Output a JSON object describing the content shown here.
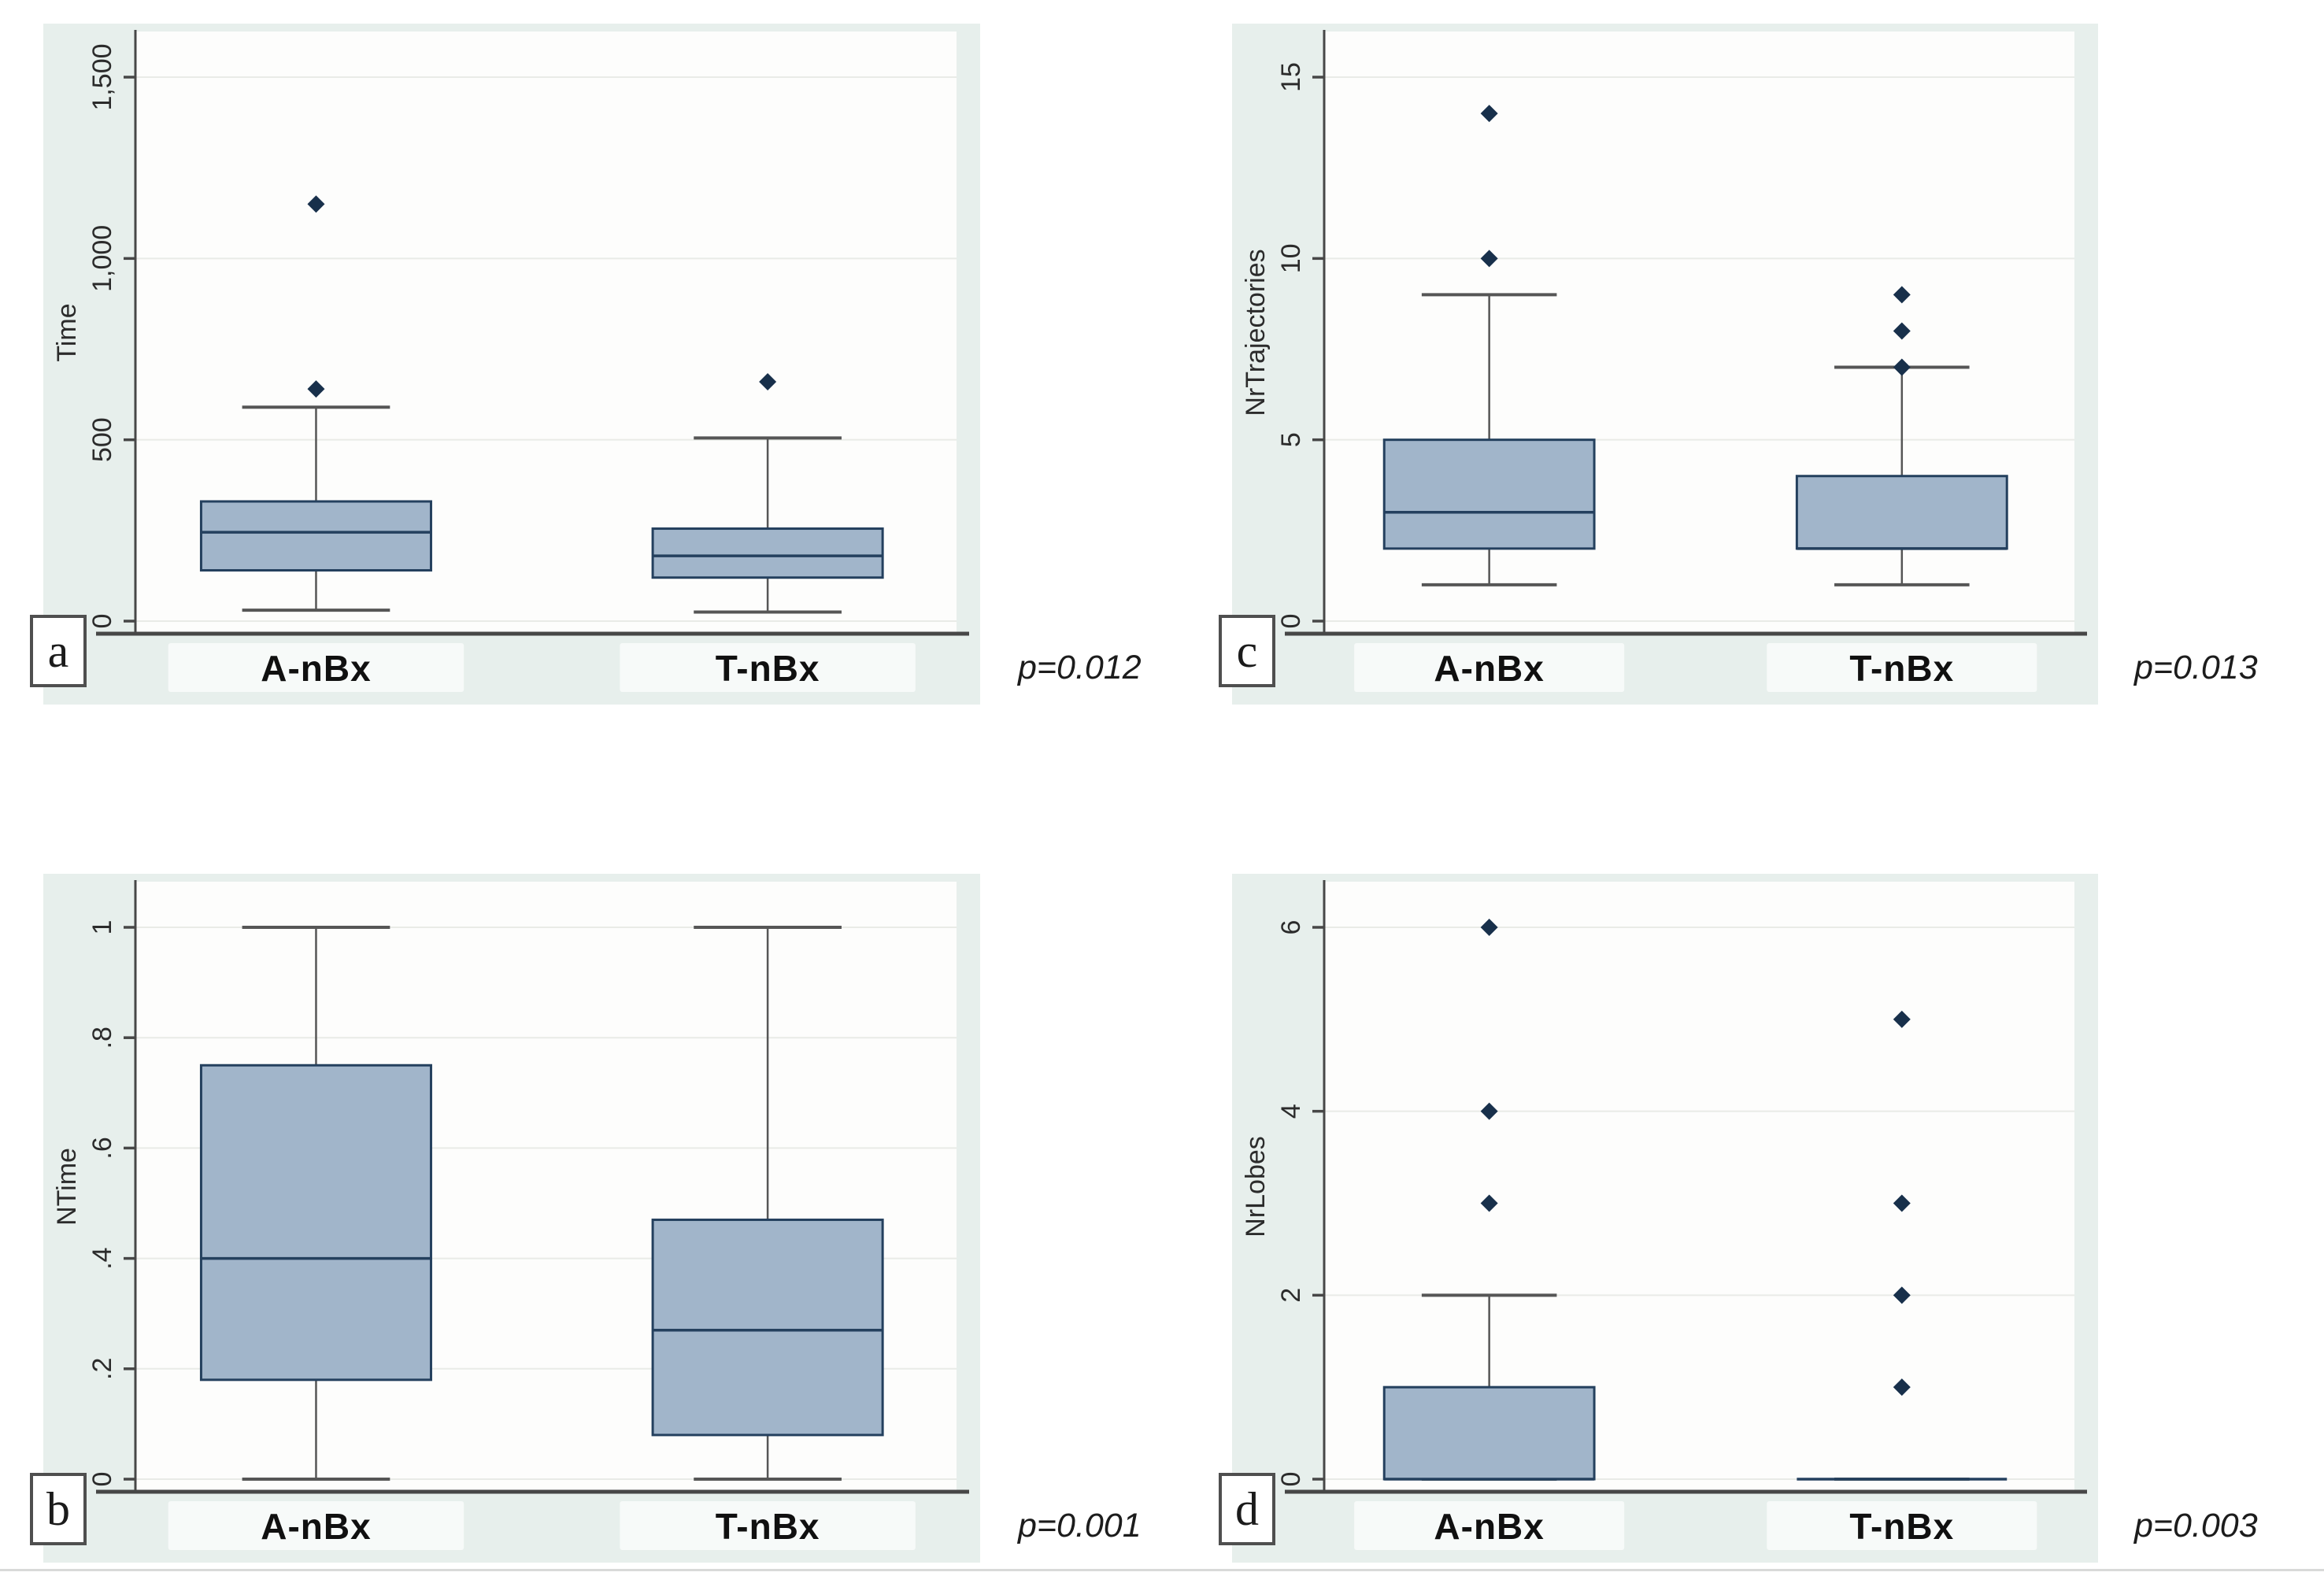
{
  "style": {
    "page_bg": "#ffffff",
    "panel_bg": "#e7efec",
    "plot_bg": "#fdfdfc",
    "grid": "#e9ebe7",
    "axis": "#474747",
    "text": "#2b2b2b",
    "whisker": "#565656",
    "box_fill": "#a1b5ca",
    "box_stroke": "#24405e",
    "outlier": "#18304b",
    "strip_bg": "#f8fbfa",
    "label_text": "#101010",
    "divider": "#d9dad9"
  },
  "chart_data": [
    {
      "type": "box",
      "panel_letter": "a",
      "p_value": "p=0.012",
      "ylabel": "Time",
      "xlabel": "",
      "ylim": [
        0,
        1500
      ],
      "ymax": 1500,
      "grid": "on",
      "yticks": [
        {
          "v": 0,
          "label": "0"
        },
        {
          "v": 500,
          "label": "500"
        },
        {
          "v": 1000,
          "label": "1,000"
        },
        {
          "v": 1500,
          "label": "1,500"
        }
      ],
      "categories": [
        "A-nBx",
        "T-nBx"
      ],
      "groups": [
        {
          "label": "A-nBx",
          "whislo": 30,
          "q1": 140,
          "med": 245,
          "q3": 330,
          "whishi": 590,
          "outliers": [
            640,
            1150
          ]
        },
        {
          "label": "T-nBx",
          "whislo": 25,
          "q1": 120,
          "med": 180,
          "q3": 255,
          "whishi": 505,
          "outliers": [
            660
          ]
        }
      ]
    },
    {
      "type": "box",
      "panel_letter": "b",
      "p_value": "p=0.001",
      "ylabel": "NTime",
      "xlabel": "",
      "ylim": [
        0,
        1
      ],
      "ymax": 1,
      "grid": "on",
      "yticks": [
        {
          "v": 0,
          "label": "0"
        },
        {
          "v": 0.2,
          "label": ".2"
        },
        {
          "v": 0.4,
          "label": ".4"
        },
        {
          "v": 0.6,
          "label": ".6"
        },
        {
          "v": 0.8,
          "label": ".8"
        },
        {
          "v": 1,
          "label": "1"
        }
      ],
      "categories": [
        "A-nBx",
        "T-nBx"
      ],
      "groups": [
        {
          "label": "A-nBx",
          "whislo": 0,
          "q1": 0.18,
          "med": 0.4,
          "q3": 0.75,
          "whishi": 1,
          "outliers": []
        },
        {
          "label": "T-nBx",
          "whislo": 0,
          "q1": 0.08,
          "med": 0.27,
          "q3": 0.47,
          "whishi": 1,
          "outliers": []
        }
      ]
    },
    {
      "type": "box",
      "panel_letter": "c",
      "p_value": "p=0.013",
      "ylabel": "NrTrajectories",
      "xlabel": "",
      "ylim": [
        0,
        15
      ],
      "ymax": 15,
      "grid": "on",
      "yticks": [
        {
          "v": 0,
          "label": "0"
        },
        {
          "v": 5,
          "label": "5"
        },
        {
          "v": 10,
          "label": "10"
        },
        {
          "v": 15,
          "label": "15"
        }
      ],
      "categories": [
        "A-nBx",
        "T-nBx"
      ],
      "groups": [
        {
          "label": "A-nBx",
          "whislo": 1,
          "q1": 2,
          "med": 3,
          "q3": 5,
          "whishi": 9,
          "outliers": [
            10,
            14
          ]
        },
        {
          "label": "T-nBx",
          "whislo": 1,
          "q1": 2,
          "med": 2,
          "q3": 4,
          "whishi": 7,
          "outliers": [
            7,
            8,
            9
          ]
        }
      ]
    },
    {
      "type": "box",
      "panel_letter": "d",
      "p_value": "p=0.003",
      "ylabel": "NrLobes",
      "xlabel": "",
      "ylim": [
        0,
        6
      ],
      "ymax": 6,
      "grid": "on",
      "yticks": [
        {
          "v": 0,
          "label": "0"
        },
        {
          "v": 2,
          "label": "2"
        },
        {
          "v": 4,
          "label": "4"
        },
        {
          "v": 6,
          "label": "6"
        }
      ],
      "categories": [
        "A-nBx",
        "T-nBx"
      ],
      "groups": [
        {
          "label": "A-nBx",
          "whislo": 0,
          "q1": 0,
          "med": 0,
          "q3": 1,
          "whishi": 2,
          "outliers": [
            3,
            4,
            6
          ]
        },
        {
          "label": "T-nBx",
          "whislo": 0,
          "q1": 0,
          "med": 0,
          "q3": 0,
          "whishi": 0,
          "outliers": [
            1,
            2,
            3,
            5
          ]
        }
      ]
    }
  ]
}
